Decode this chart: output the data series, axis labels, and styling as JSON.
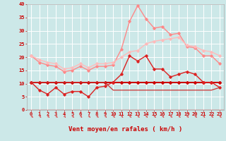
{
  "background_color": "#cce8e8",
  "grid_color": "#ffffff",
  "x_labels": [
    0,
    1,
    2,
    3,
    4,
    5,
    6,
    7,
    8,
    9,
    10,
    11,
    12,
    13,
    14,
    15,
    16,
    17,
    18,
    19,
    20,
    21,
    22,
    23
  ],
  "xlabel": "Vent moyen/en rafales ( km/h )",
  "ylim": [
    0,
    40
  ],
  "yticks": [
    0,
    5,
    10,
    15,
    20,
    25,
    30,
    35,
    40
  ],
  "lines": [
    {
      "color": "#cc0000",
      "linewidth": 1.4,
      "marker": "D",
      "markersize": 2.0,
      "data": [
        10.5,
        10.5,
        10.5,
        10.5,
        10.5,
        10.5,
        10.5,
        10.5,
        10.5,
        10.5,
        10.5,
        10.5,
        10.5,
        10.5,
        10.5,
        10.5,
        10.5,
        10.5,
        10.5,
        10.5,
        10.5,
        10.5,
        10.5,
        10.5
      ]
    },
    {
      "color": "#dd2222",
      "linewidth": 1.0,
      "marker": "D",
      "markersize": 1.8,
      "data": [
        10.5,
        7.5,
        6.0,
        8.5,
        6.0,
        7.0,
        7.0,
        5.0,
        8.5,
        9.0,
        10.5,
        13.5,
        20.5,
        18.5,
        20.5,
        15.5,
        15.5,
        12.5,
        13.5,
        14.5,
        13.5,
        10.5,
        10.5,
        8.5
      ]
    },
    {
      "color": "#cc3333",
      "linewidth": 0.9,
      "marker": null,
      "markersize": 0,
      "data": [
        10.5,
        10.5,
        10.5,
        10.5,
        10.5,
        10.5,
        10.5,
        10.5,
        10.5,
        10.5,
        7.5,
        7.5,
        7.5,
        7.5,
        7.5,
        7.5,
        7.5,
        7.5,
        7.5,
        7.5,
        7.5,
        7.5,
        7.5,
        8.5
      ]
    },
    {
      "color": "#ff8888",
      "linewidth": 1.0,
      "marker": "D",
      "markersize": 1.8,
      "data": [
        20.5,
        18.0,
        17.0,
        16.5,
        14.5,
        15.0,
        16.5,
        15.0,
        16.5,
        16.5,
        17.0,
        23.0,
        33.5,
        39.5,
        34.5,
        31.0,
        31.5,
        28.5,
        29.0,
        24.0,
        23.5,
        20.5,
        20.5,
        17.5
      ]
    },
    {
      "color": "#ffbbbb",
      "linewidth": 1.0,
      "marker": "D",
      "markersize": 1.8,
      "data": [
        20.5,
        19.0,
        18.0,
        17.5,
        15.5,
        16.0,
        17.5,
        16.0,
        17.5,
        17.5,
        18.0,
        20.0,
        22.0,
        22.5,
        25.0,
        26.0,
        26.5,
        27.0,
        27.5,
        24.5,
        24.0,
        22.5,
        22.0,
        20.5
      ]
    }
  ],
  "arrow_color": "#dd4444",
  "tick_fontsize": 5.0,
  "xlabel_fontsize": 6.5
}
